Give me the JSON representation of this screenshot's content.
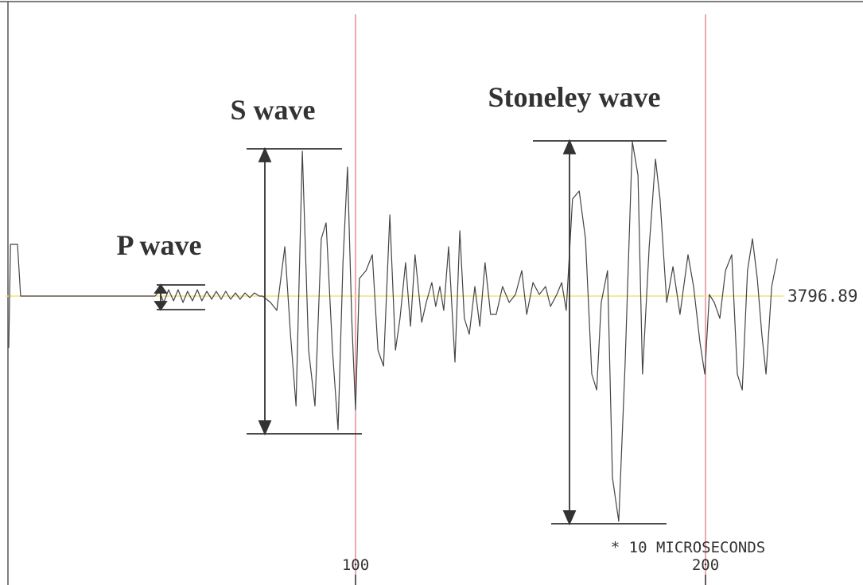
{
  "chart_data": {
    "type": "line",
    "x": [
      0.9,
      1.4,
      3.4,
      4.3,
      42.7,
      43.9,
      45.2,
      46.6,
      48.0,
      49.3,
      50.7,
      52.0,
      53.4,
      54.8,
      56.1,
      57.5,
      58.9,
      60.2,
      61.6,
      62.9,
      64.3,
      65.7,
      67.0,
      68.4,
      69.8,
      71.1,
      72.5,
      73.4,
      75.7,
      77.5,
      79.8,
      81.4,
      83.0,
      84.8,
      86.6,
      88.4,
      90.2,
      91.6,
      93.4,
      95.0,
      96.4,
      97.7,
      98.9,
      100.0,
      101.1,
      103.0,
      104.8,
      106.4,
      108.0,
      109.8,
      111.4,
      112.7,
      114.3,
      115.7,
      117.0,
      118.9,
      120.2,
      121.8,
      122.9,
      124.1,
      125.2,
      126.6,
      128.4,
      129.8,
      131.1,
      132.5,
      134.1,
      135.5,
      137.0,
      138.6,
      140.2,
      142.0,
      143.9,
      145.7,
      147.5,
      148.9,
      150.7,
      152.5,
      154.3,
      155.7,
      157.5,
      158.9,
      160.2,
      162.0,
      163.9,
      165.7,
      167.5,
      168.9,
      170.2,
      172.0,
      173.4,
      175.2,
      177.0,
      179.1,
      180.7,
      182.0,
      183.9,
      185.7,
      187.0,
      188.9,
      190.7,
      192.7,
      195.0,
      196.6,
      198.4,
      199.8,
      201.1,
      202.5,
      204.1,
      205.7,
      207.5,
      209.1,
      210.5,
      212.0,
      213.4,
      214.8,
      216.1,
      217.3,
      218.9,
      220.5
    ],
    "series": [
      {
        "color": "#444444",
        "values": [
          -65,
          65,
          65,
          0,
          0,
          6,
          -8,
          8,
          -6,
          8,
          -8,
          6,
          -6,
          8,
          -6,
          6,
          -4,
          6,
          -4,
          6,
          -4,
          4,
          -4,
          4,
          -2,
          4,
          0,
          0,
          -8,
          -18,
          62,
          -48,
          -138,
          182,
          -68,
          -138,
          72,
          92,
          -68,
          -168,
          42,
          162,
          -28,
          -143,
          22,
          32,
          52,
          -68,
          -88,
          102,
          -68,
          -28,
          42,
          -38,
          52,
          -33,
          -8,
          17,
          -13,
          12,
          -18,
          62,
          -83,
          82,
          -28,
          -48,
          12,
          -38,
          42,
          -23,
          -23,
          12,
          -8,
          2,
          32,
          -23,
          17,
          2,
          12,
          -13,
          2,
          17,
          -18,
          122,
          132,
          72,
          -98,
          -118,
          -8,
          32,
          -228,
          -283,
          -88,
          194,
          152,
          -98,
          62,
          172,
          122,
          -8,
          37,
          -23,
          52,
          12,
          -58,
          -98,
          2,
          -8,
          -28,
          32,
          52,
          -98,
          -118,
          32,
          72,
          22,
          -48,
          -98,
          12,
          47
        ]
      }
    ],
    "xlim": [
      0,
      244
    ],
    "ylim": [
      -328,
      328
    ],
    "xticks": [
      100,
      200
    ],
    "yticks": [
      {
        "value": 0,
        "label": "3796.89"
      }
    ],
    "grid": true,
    "grid_color": "#e07080",
    "baseline_color": "#f2e27a",
    "xlabel": "* 10 MICROSECONDS",
    "annotations": [
      "P wave",
      "S wave",
      "Stoneley wave"
    ]
  }
}
